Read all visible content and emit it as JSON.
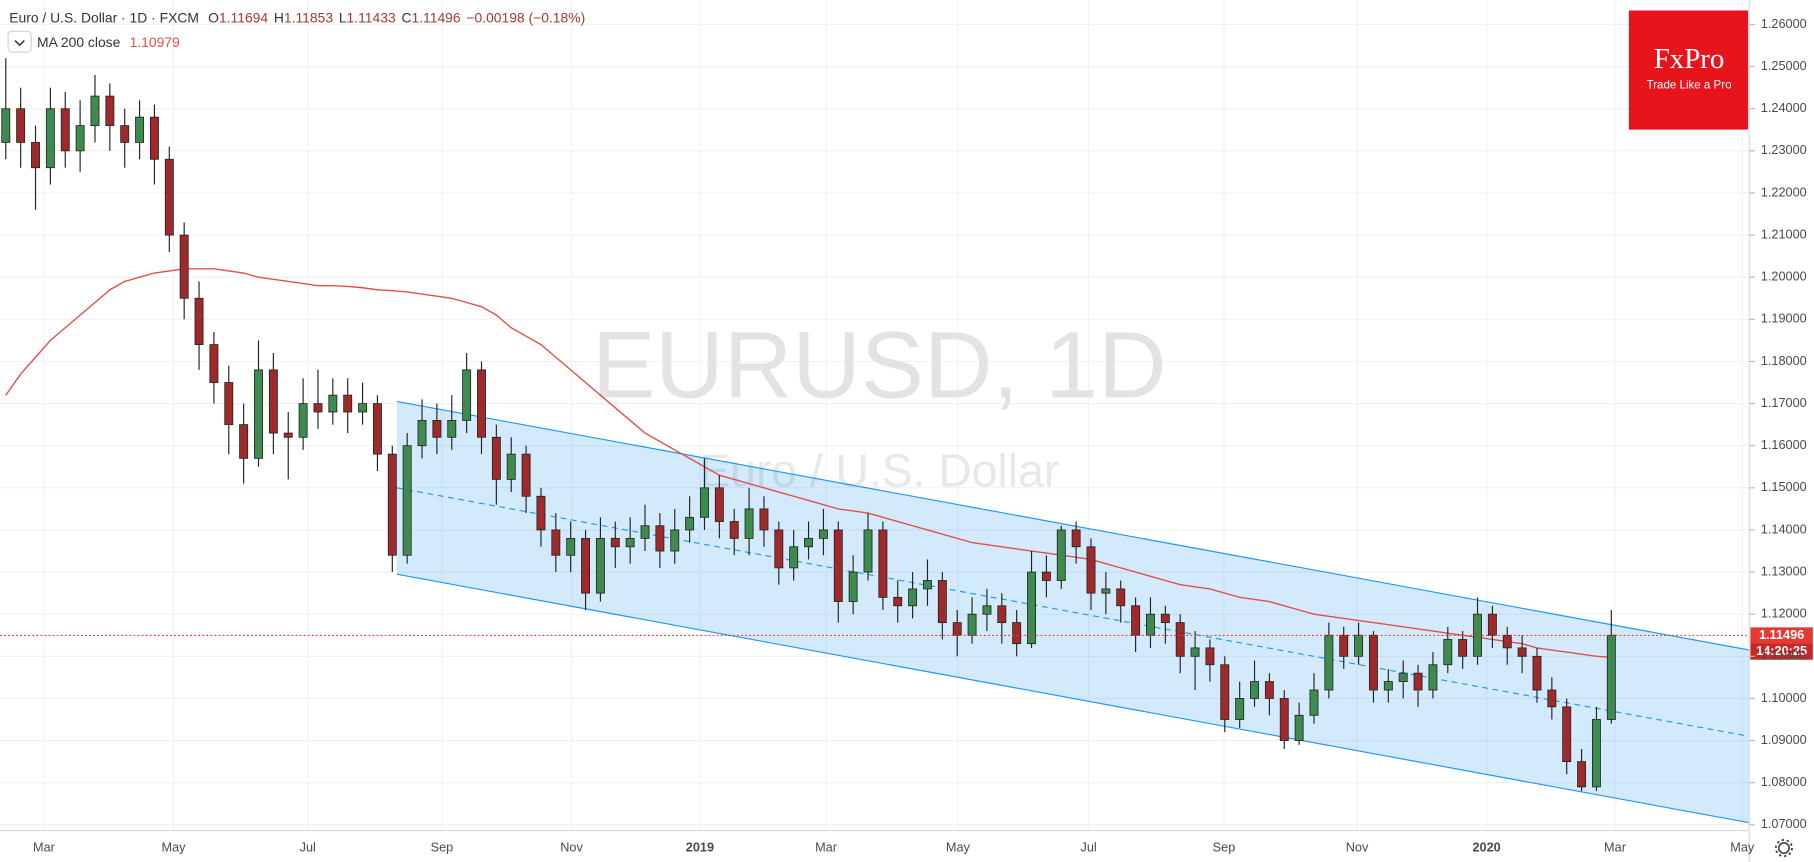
{
  "chart_data": {
    "type": "candlestick",
    "title": "Euro / U.S. Dollar · 1D · FXCM",
    "ohlc_header": [
      {
        "key": "O",
        "value": 1.11694
      },
      {
        "key": "H",
        "value": 1.11853
      },
      {
        "key": "L",
        "value": 1.11433
      },
      {
        "key": "C",
        "value": 1.11496
      }
    ],
    "change": "−0.00198 (−0.18%)",
    "ma_last": 1.10979,
    "watermark": [
      "EURUSD, 1D",
      "Euro / U.S. Dollar"
    ],
    "logo": {
      "name": "FxPro",
      "tagline": "Trade Like a Pro"
    },
    "last_price": 1.11496,
    "countdown": "14:20:25",
    "up_color": "#3d8b4f",
    "down_color": "#9e2a2b",
    "xtick_labels": [
      "Mar",
      "May",
      "Jul",
      "Sep",
      "Nov",
      "2019",
      "Mar",
      "May",
      "Jul",
      "Sep",
      "Nov",
      "2020",
      "Mar",
      "May"
    ],
    "ylim": [
      1.0686,
      1.2658
    ],
    "yticks": [
      {
        "value": 1.07,
        "label": "1.07000"
      },
      {
        "value": 1.08,
        "label": "1.08000"
      },
      {
        "value": 1.09,
        "label": "1.09000"
      },
      {
        "value": 1.1,
        "label": "1.10000"
      },
      {
        "value": 1.11,
        "label": "1.11000"
      },
      {
        "value": 1.12,
        "label": "1.12000"
      },
      {
        "value": 1.13,
        "label": "1.13000"
      },
      {
        "value": 1.14,
        "label": "1.14000"
      },
      {
        "value": 1.15,
        "label": "1.15000"
      },
      {
        "value": 1.16,
        "label": "1.16000"
      },
      {
        "value": 1.17,
        "label": "1.17000"
      },
      {
        "value": 1.18,
        "label": "1.18000"
      },
      {
        "value": 1.19,
        "label": "1.19000"
      },
      {
        "value": 1.2,
        "label": "1.20000"
      },
      {
        "value": 1.21,
        "label": "1.21000"
      },
      {
        "value": 1.22,
        "label": "1.22000"
      },
      {
        "value": 1.23,
        "label": "1.23000"
      },
      {
        "value": 1.24,
        "label": "1.24000"
      },
      {
        "value": 1.25,
        "label": "1.25000"
      },
      {
        "value": 1.26,
        "label": "1.26000"
      }
    ],
    "grid": true,
    "channel": {
      "color": "#2196f3",
      "upper": [
        1.1705,
        1.1115
      ],
      "middle": [
        1.15,
        1.091
      ],
      "lower": [
        1.1295,
        1.0705
      ]
    },
    "ohlc": [
      [
        1.232,
        1.252,
        1.228,
        1.24
      ],
      [
        1.24,
        1.245,
        1.226,
        1.232
      ],
      [
        1.232,
        1.236,
        1.216,
        1.226
      ],
      [
        1.226,
        1.245,
        1.222,
        1.24
      ],
      [
        1.24,
        1.244,
        1.226,
        1.23
      ],
      [
        1.23,
        1.242,
        1.225,
        1.236
      ],
      [
        1.236,
        1.248,
        1.232,
        1.243
      ],
      [
        1.243,
        1.246,
        1.23,
        1.236
      ],
      [
        1.236,
        1.24,
        1.226,
        1.232
      ],
      [
        1.232,
        1.242,
        1.228,
        1.238
      ],
      [
        1.238,
        1.241,
        1.222,
        1.228
      ],
      [
        1.228,
        1.231,
        1.206,
        1.21
      ],
      [
        1.21,
        1.213,
        1.19,
        1.195
      ],
      [
        1.195,
        1.199,
        1.178,
        1.184
      ],
      [
        1.184,
        1.187,
        1.17,
        1.175
      ],
      [
        1.175,
        1.179,
        1.158,
        1.165
      ],
      [
        1.165,
        1.17,
        1.151,
        1.157
      ],
      [
        1.157,
        1.185,
        1.155,
        1.178
      ],
      [
        1.178,
        1.182,
        1.158,
        1.163
      ],
      [
        1.163,
        1.168,
        1.152,
        1.162
      ],
      [
        1.162,
        1.176,
        1.159,
        1.17
      ],
      [
        1.17,
        1.178,
        1.164,
        1.168
      ],
      [
        1.168,
        1.176,
        1.165,
        1.172
      ],
      [
        1.172,
        1.176,
        1.163,
        1.168
      ],
      [
        1.168,
        1.175,
        1.165,
        1.17
      ],
      [
        1.17,
        1.172,
        1.154,
        1.158
      ],
      [
        1.158,
        1.16,
        1.13,
        1.134
      ],
      [
        1.134,
        1.163,
        1.132,
        1.16
      ],
      [
        1.16,
        1.171,
        1.157,
        1.166
      ],
      [
        1.166,
        1.17,
        1.158,
        1.162
      ],
      [
        1.162,
        1.172,
        1.159,
        1.166
      ],
      [
        1.166,
        1.182,
        1.163,
        1.178
      ],
      [
        1.178,
        1.18,
        1.158,
        1.162
      ],
      [
        1.162,
        1.165,
        1.146,
        1.152
      ],
      [
        1.152,
        1.162,
        1.149,
        1.158
      ],
      [
        1.158,
        1.16,
        1.144,
        1.148
      ],
      [
        1.148,
        1.15,
        1.136,
        1.14
      ],
      [
        1.14,
        1.144,
        1.13,
        1.134
      ],
      [
        1.134,
        1.142,
        1.13,
        1.138
      ],
      [
        1.138,
        1.14,
        1.121,
        1.125
      ],
      [
        1.125,
        1.143,
        1.123,
        1.138
      ],
      [
        1.138,
        1.142,
        1.131,
        1.136
      ],
      [
        1.136,
        1.143,
        1.132,
        1.138
      ],
      [
        1.138,
        1.146,
        1.135,
        1.141
      ],
      [
        1.141,
        1.144,
        1.131,
        1.135
      ],
      [
        1.135,
        1.145,
        1.132,
        1.14
      ],
      [
        1.14,
        1.148,
        1.137,
        1.143
      ],
      [
        1.143,
        1.157,
        1.14,
        1.15
      ],
      [
        1.15,
        1.153,
        1.138,
        1.142
      ],
      [
        1.142,
        1.145,
        1.134,
        1.138
      ],
      [
        1.138,
        1.15,
        1.134,
        1.145
      ],
      [
        1.145,
        1.148,
        1.136,
        1.14
      ],
      [
        1.14,
        1.142,
        1.127,
        1.131
      ],
      [
        1.131,
        1.14,
        1.128,
        1.136
      ],
      [
        1.136,
        1.142,
        1.133,
        1.138
      ],
      [
        1.138,
        1.145,
        1.134,
        1.14
      ],
      [
        1.14,
        1.142,
        1.118,
        1.123
      ],
      [
        1.123,
        1.134,
        1.12,
        1.13
      ],
      [
        1.13,
        1.144,
        1.128,
        1.14
      ],
      [
        1.14,
        1.142,
        1.121,
        1.124
      ],
      [
        1.124,
        1.128,
        1.118,
        1.122
      ],
      [
        1.122,
        1.13,
        1.119,
        1.126
      ],
      [
        1.126,
        1.133,
        1.122,
        1.128
      ],
      [
        1.128,
        1.13,
        1.114,
        1.118
      ],
      [
        1.118,
        1.121,
        1.11,
        1.115
      ],
      [
        1.115,
        1.124,
        1.113,
        1.12
      ],
      [
        1.12,
        1.126,
        1.116,
        1.122
      ],
      [
        1.122,
        1.125,
        1.113,
        1.118
      ],
      [
        1.118,
        1.121,
        1.11,
        1.113
      ],
      [
        1.113,
        1.135,
        1.112,
        1.13
      ],
      [
        1.13,
        1.134,
        1.124,
        1.128
      ],
      [
        1.128,
        1.141,
        1.126,
        1.14
      ],
      [
        1.14,
        1.142,
        1.132,
        1.136
      ],
      [
        1.136,
        1.138,
        1.121,
        1.125
      ],
      [
        1.125,
        1.13,
        1.12,
        1.126
      ],
      [
        1.126,
        1.128,
        1.118,
        1.122
      ],
      [
        1.122,
        1.124,
        1.111,
        1.115
      ],
      [
        1.115,
        1.124,
        1.112,
        1.12
      ],
      [
        1.12,
        1.122,
        1.113,
        1.118
      ],
      [
        1.118,
        1.12,
        1.106,
        1.11
      ],
      [
        1.11,
        1.116,
        1.102,
        1.112
      ],
      [
        1.112,
        1.114,
        1.104,
        1.108
      ],
      [
        1.108,
        1.11,
        1.092,
        1.095
      ],
      [
        1.095,
        1.104,
        1.093,
        1.1
      ],
      [
        1.1,
        1.109,
        1.098,
        1.104
      ],
      [
        1.104,
        1.106,
        1.096,
        1.1
      ],
      [
        1.1,
        1.102,
        1.088,
        1.09
      ],
      [
        1.09,
        1.099,
        1.089,
        1.096
      ],
      [
        1.096,
        1.106,
        1.094,
        1.102
      ],
      [
        1.102,
        1.118,
        1.1,
        1.115
      ],
      [
        1.115,
        1.117,
        1.107,
        1.11
      ],
      [
        1.11,
        1.118,
        1.108,
        1.115
      ],
      [
        1.115,
        1.116,
        1.099,
        1.102
      ],
      [
        1.102,
        1.107,
        1.099,
        1.104
      ],
      [
        1.104,
        1.109,
        1.1,
        1.106
      ],
      [
        1.106,
        1.108,
        1.098,
        1.102
      ],
      [
        1.102,
        1.111,
        1.1,
        1.108
      ],
      [
        1.108,
        1.117,
        1.106,
        1.114
      ],
      [
        1.114,
        1.116,
        1.107,
        1.11
      ],
      [
        1.11,
        1.124,
        1.108,
        1.12
      ],
      [
        1.12,
        1.122,
        1.112,
        1.115
      ],
      [
        1.115,
        1.117,
        1.108,
        1.112
      ],
      [
        1.112,
        1.115,
        1.106,
        1.11
      ],
      [
        1.11,
        1.112,
        1.099,
        1.102
      ],
      [
        1.102,
        1.105,
        1.095,
        1.098
      ],
      [
        1.098,
        1.1,
        1.082,
        1.085
      ],
      [
        1.085,
        1.088,
        1.078,
        1.079
      ],
      [
        1.079,
        1.098,
        1.078,
        1.095
      ],
      [
        1.095,
        1.121,
        1.094,
        1.115
      ]
    ],
    "series": [
      {
        "name": "MA 200 close",
        "color": "#e0504a",
        "values": [
          1.172,
          1.177,
          1.181,
          1.185,
          1.188,
          1.191,
          1.194,
          1.197,
          1.199,
          1.2,
          1.201,
          1.2015,
          1.202,
          1.202,
          1.202,
          1.2015,
          1.201,
          1.2,
          1.1995,
          1.199,
          1.1985,
          1.198,
          1.198,
          1.1978,
          1.1975,
          1.197,
          1.1968,
          1.1965,
          1.196,
          1.1955,
          1.195,
          1.194,
          1.193,
          1.191,
          1.188,
          1.186,
          1.184,
          1.181,
          1.178,
          1.175,
          1.172,
          1.169,
          1.166,
          1.163,
          1.161,
          1.159,
          1.157,
          1.155,
          1.153,
          1.152,
          1.151,
          1.15,
          1.149,
          1.148,
          1.147,
          1.146,
          1.145,
          1.1445,
          1.144,
          1.143,
          1.142,
          1.141,
          1.14,
          1.139,
          1.138,
          1.137,
          1.1365,
          1.136,
          1.1355,
          1.135,
          1.1345,
          1.134,
          1.1335,
          1.133,
          1.132,
          1.131,
          1.13,
          1.129,
          1.128,
          1.127,
          1.1265,
          1.126,
          1.125,
          1.124,
          1.1235,
          1.123,
          1.122,
          1.121,
          1.12,
          1.1195,
          1.119,
          1.1185,
          1.118,
          1.1175,
          1.117,
          1.1165,
          1.116,
          1.1155,
          1.115,
          1.1145,
          1.114,
          1.1135,
          1.113,
          1.112,
          1.1115,
          1.111,
          1.1105,
          1.11,
          1.1098
        ]
      }
    ]
  }
}
